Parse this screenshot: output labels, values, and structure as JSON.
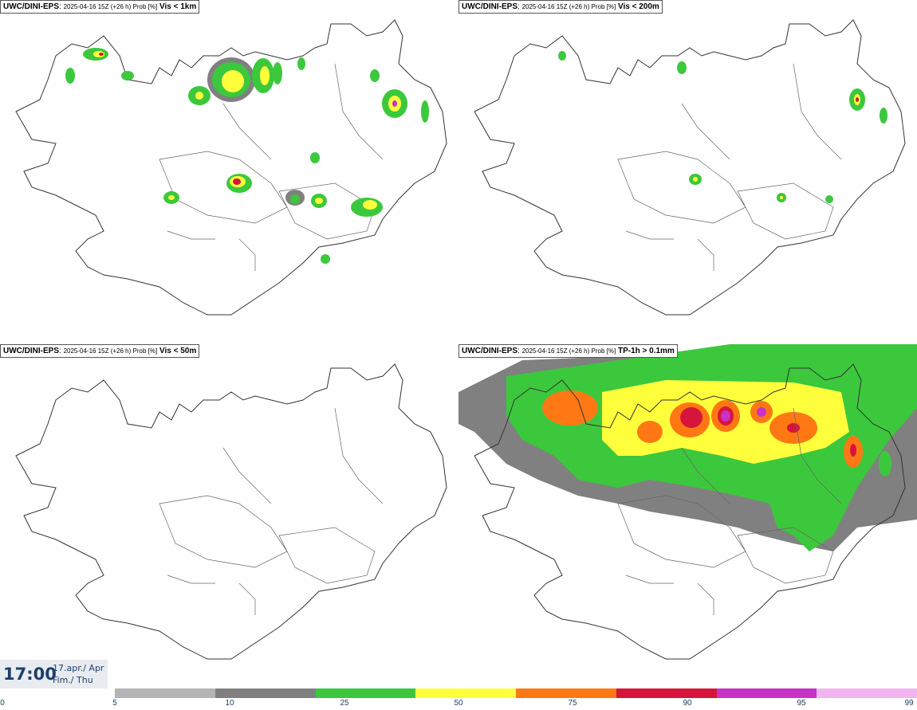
{
  "panels": [
    {
      "model": "UWC/DINI-EPS",
      "meta": "2025-04-16 15Z (+26 h) Prob [%]",
      "variable": "Vis < 1km"
    },
    {
      "model": "UWC/DINI-EPS",
      "meta": "2025-04-16 15Z (+26 h) Prob [%]",
      "variable": "Vis < 200m"
    },
    {
      "model": "UWC/DINI-EPS",
      "meta": "2025-04-16 15Z (+26 h) Prob [%]",
      "variable": "Vis < 50m"
    },
    {
      "model": "UWC/DINI-EPS",
      "meta": "2025-04-16 15Z (+26 h) Prob [%]",
      "variable": "TP-1h > 0.1mm"
    }
  ],
  "valid_time": {
    "time": "17:00",
    "date_line1": "17.apr./ Apr",
    "date_line2": "Fim./ Thu"
  },
  "legend": {
    "ticks": [
      "0",
      "5",
      "10",
      "25",
      "50",
      "75",
      "90",
      "95",
      "99"
    ],
    "colors": [
      "#b4b4b4",
      "#808080",
      "#3cc83c",
      "#ffff3c",
      "#ff7814",
      "#d7143c",
      "#c832c8",
      "#f0b4f0"
    ]
  },
  "colors": {
    "coast": "#333333",
    "land": "#ffffff",
    "title_text": "#000000",
    "time_text": "#1d3f6a"
  }
}
